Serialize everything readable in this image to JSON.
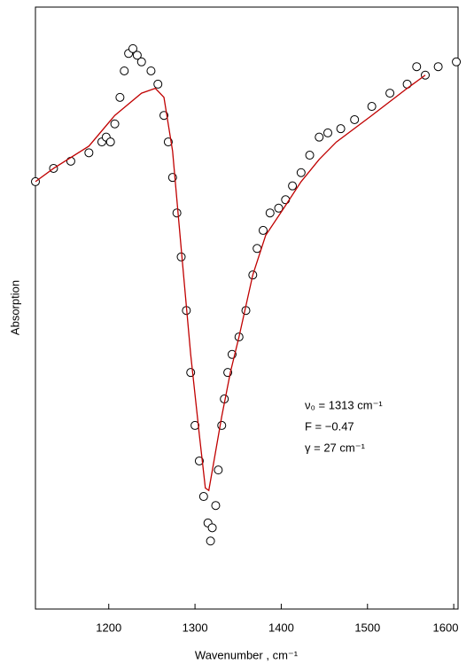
{
  "chart_data": {
    "type": "scatter",
    "x_label": "Wavenumber , cm⁻¹",
    "y_label": "Absorption",
    "xlim": [
      1115,
      1605
    ],
    "ylim": [
      0,
      100
    ],
    "xticks": [
      1200,
      1300,
      1400,
      1500,
      1600
    ],
    "annotations": [
      "ν₀ = 1313 cm⁻¹",
      "F = −0.47",
      "γ = 27 cm⁻¹"
    ],
    "series": [
      {
        "mode": "markers",
        "color": "#000000",
        "x": [
          1115,
          1136,
          1156,
          1177,
          1192,
          1197,
          1202,
          1207,
          1213,
          1218,
          1223,
          1228,
          1233,
          1238,
          1249,
          1257,
          1264,
          1269,
          1274,
          1279,
          1284,
          1290,
          1295,
          1300,
          1305,
          1310,
          1315,
          1318,
          1320,
          1324,
          1327,
          1331,
          1334,
          1338,
          1343,
          1351,
          1359,
          1367,
          1372,
          1379,
          1387,
          1397,
          1405,
          1413,
          1423,
          1433,
          1444,
          1454,
          1469,
          1485,
          1505,
          1526,
          1546,
          1557,
          1567,
          1582,
          1603
        ],
        "values": [
          71.0,
          73.2,
          74.4,
          75.8,
          77.6,
          78.4,
          77.6,
          80.6,
          85.0,
          89.4,
          92.3,
          93.1,
          92.0,
          90.9,
          89.4,
          87.2,
          82.0,
          77.6,
          71.7,
          65.8,
          58.5,
          49.6,
          39.3,
          30.5,
          24.6,
          18.7,
          14.3,
          11.3,
          13.5,
          17.2,
          23.1,
          30.5,
          34.9,
          39.3,
          42.3,
          45.2,
          49.6,
          55.5,
          59.9,
          62.9,
          65.8,
          66.6,
          68.0,
          70.3,
          72.5,
          75.4,
          78.4,
          79.1,
          79.8,
          81.3,
          83.5,
          85.7,
          87.2,
          90.1,
          88.7,
          90.1,
          90.9
        ]
      },
      {
        "mode": "line",
        "color": "#c00000",
        "x": [
          1115,
          1136,
          1177,
          1207,
          1238,
          1254,
          1264,
          1274,
          1284,
          1295,
          1305,
          1312,
          1316,
          1322,
          1331,
          1341,
          1351,
          1367,
          1382,
          1403,
          1423,
          1444,
          1464,
          1505,
          1546,
          1567
        ],
        "values": [
          71.0,
          73.2,
          76.9,
          82.0,
          85.7,
          86.5,
          85.0,
          76.1,
          59.9,
          42.3,
          29.0,
          20.1,
          19.7,
          24.6,
          32.0,
          39.3,
          45.2,
          55.5,
          62.1,
          66.6,
          71.0,
          74.7,
          77.6,
          82.0,
          86.5,
          88.7
        ]
      }
    ]
  }
}
